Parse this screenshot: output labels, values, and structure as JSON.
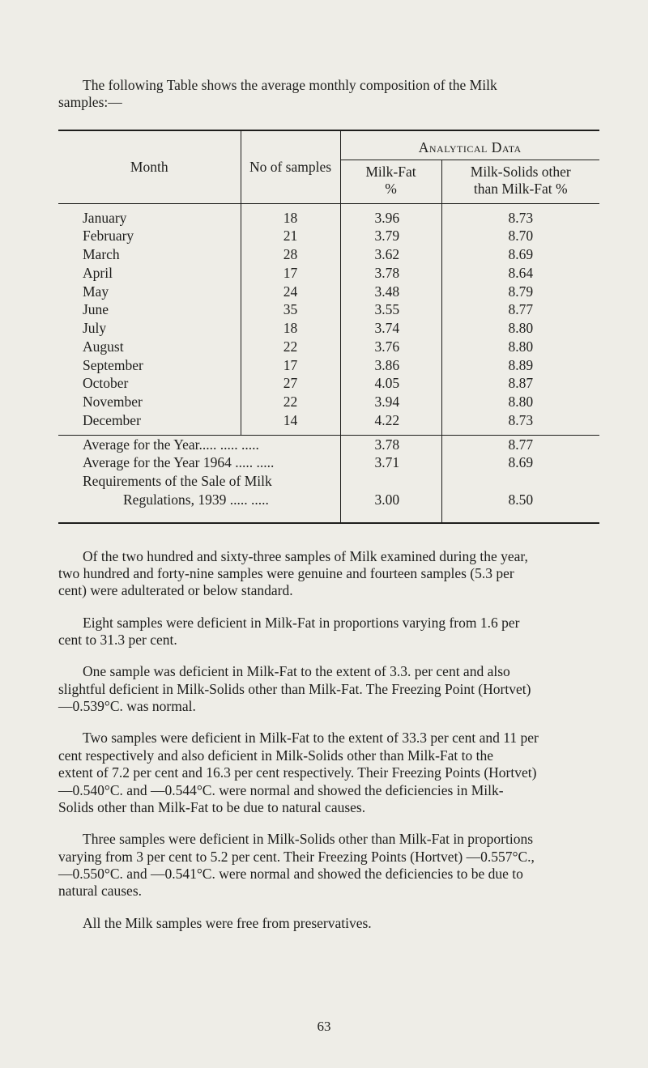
{
  "intro": {
    "line1": "The following Table shows the average monthly composition of the Milk",
    "line2": "samples:—"
  },
  "table": {
    "headers": {
      "month": "Month",
      "samples": "No of samples",
      "analytical": "Analytical Data",
      "fat1": "Milk-Fat",
      "fat2": "%",
      "solids1": "Milk-Solids other",
      "solids2": "than Milk-Fat %"
    },
    "rows": [
      {
        "month": "January",
        "samples": "18",
        "fat": "3.96",
        "solids": "8.73"
      },
      {
        "month": "February",
        "samples": "21",
        "fat": "3.79",
        "solids": "8.70"
      },
      {
        "month": "March",
        "samples": "28",
        "fat": "3.62",
        "solids": "8.69"
      },
      {
        "month": "April",
        "samples": "17",
        "fat": "3.78",
        "solids": "8.64"
      },
      {
        "month": "May",
        "samples": "24",
        "fat": "3.48",
        "solids": "8.79"
      },
      {
        "month": "June",
        "samples": "35",
        "fat": "3.55",
        "solids": "8.77"
      },
      {
        "month": "July",
        "samples": "18",
        "fat": "3.74",
        "solids": "8.80"
      },
      {
        "month": "August",
        "samples": "22",
        "fat": "3.76",
        "solids": "8.80"
      },
      {
        "month": "September",
        "samples": "17",
        "fat": "3.86",
        "solids": "8.89"
      },
      {
        "month": "October",
        "samples": "27",
        "fat": "4.05",
        "solids": "8.87"
      },
      {
        "month": "November",
        "samples": "22",
        "fat": "3.94",
        "solids": "8.80"
      },
      {
        "month": "December",
        "samples": "14",
        "fat": "4.22",
        "solids": "8.73"
      }
    ],
    "summary": {
      "avg_year": {
        "label": "Average for the Year.....   .....   .....",
        "fat": "3.78",
        "solids": "8.77"
      },
      "avg_1964": {
        "label": "Average for the Year 1964 .....   .....",
        "fat": "3.71",
        "solids": "8.69"
      },
      "req1": "Requirements of the Sale of Milk",
      "req2": "Regulations, 1939         .....   .....",
      "req_fat": "3.00",
      "req_solids": "8.50"
    }
  },
  "paras": {
    "p1a": "Of the two hundred and sixty-three samples of Milk examined during the year,",
    "p1b": "two hundred and forty-nine samples were genuine and fourteen samples (5.3 per",
    "p1c": "cent) were adulterated or below standard.",
    "p2a": "Eight samples were deficient in Milk-Fat in proportions varying from 1.6 per",
    "p2b": "cent to 31.3 per cent.",
    "p3a": "One sample was deficient in Milk-Fat to the extent of 3.3. per cent and also",
    "p3b": "slightful deficient in Milk-Solids other than Milk-Fat. The Freezing Point (Hortvet)",
    "p3c": "—0.539°C. was normal.",
    "p4a": "Two samples were deficient in Milk-Fat to the extent of 33.3 per cent and 11 per",
    "p4b": "cent respectively and also deficient in Milk-Solids other than Milk-Fat to the",
    "p4c": "extent of 7.2 per cent and 16.3 per cent respectively. Their Freezing Points (Hortvet)",
    "p4d": "—0.540°C. and —0.544°C. were normal and showed the deficiencies in Milk-",
    "p4e": "Solids other than Milk-Fat to be due to natural causes.",
    "p5a": "Three samples were deficient in Milk-Solids other than Milk-Fat in proportions",
    "p5b": "varying from 3 per cent to 5.2 per cent. Their Freezing Points (Hortvet) —0.557°C.,",
    "p5c": "—0.550°C. and —0.541°C. were normal and showed the deficiencies to be due to",
    "p5d": "natural causes.",
    "p6a": "All the Milk samples were free from preservatives."
  },
  "pageno": "63"
}
